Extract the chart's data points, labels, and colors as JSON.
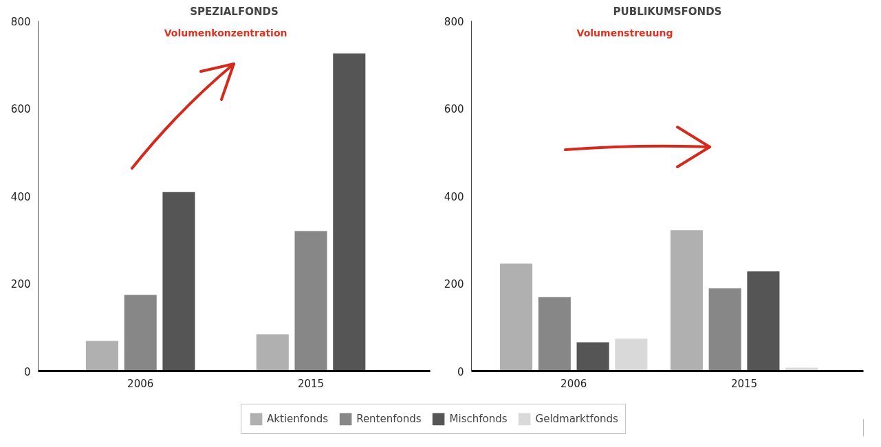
{
  "chart_data": [
    {
      "type": "bar",
      "title": "SPEZIALFONDS",
      "categories": [
        "2006",
        "2015"
      ],
      "ylim": [
        0,
        800
      ],
      "yticks": [
        0,
        200,
        400,
        600,
        800
      ],
      "grid": false,
      "annotations": [
        "Volumenkonzentration"
      ],
      "series": [
        {
          "color": "#b0b0b0",
          "values": [
            69,
            84
          ]
        },
        {
          "color": "#878787",
          "values": [
            174,
            320
          ]
        },
        {
          "color": "#555555",
          "values": [
            409,
            726
          ]
        }
      ]
    },
    {
      "type": "bar",
      "title": "PUBLIKUMSFONDS",
      "categories": [
        "2006",
        "2015"
      ],
      "ylim": [
        0,
        800
      ],
      "yticks": [
        0,
        200,
        400,
        600,
        800
      ],
      "grid": false,
      "legend": "bottom",
      "annotations": [
        "Volumenstreuung"
      ],
      "series": [
        {
          "name": "Aktienfonds",
          "color": "#b0b0b0",
          "values": [
            246,
            322
          ]
        },
        {
          "name": "Rentenfonds",
          "color": "#878787",
          "values": [
            169,
            189
          ]
        },
        {
          "name": "Mischfonds",
          "color": "#555555",
          "values": [
            66,
            228
          ]
        },
        {
          "name": "Geldmarktfonds",
          "color": "#d9d9d9",
          "values": [
            74,
            8
          ]
        }
      ]
    }
  ]
}
